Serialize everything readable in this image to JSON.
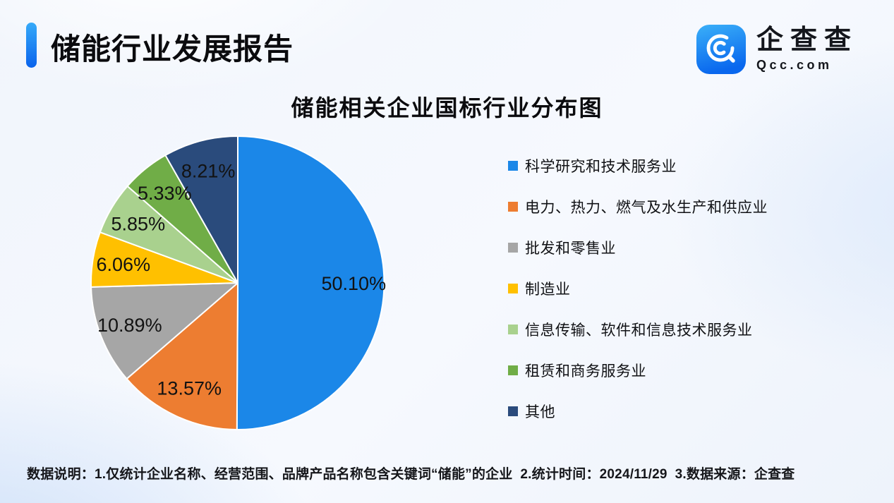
{
  "header": {
    "title": "储能行业发展报告",
    "logo": {
      "brand": "企查查",
      "domain": "Qcc.com",
      "icon": "qcc-magnifier-icon",
      "icon_gradient": [
        "#3bb0f8",
        "#0967ee"
      ]
    }
  },
  "chart_data": {
    "type": "pie",
    "title": "储能相关企业国标行业分布图",
    "categories": [
      "科学研究和技术服务业",
      "电力、热力、燃气及水生产和供应业",
      "批发和零售业",
      "制造业",
      "信息传输、软件和信息技术服务业",
      "租赁和商务服务业",
      "其他"
    ],
    "values": [
      50.1,
      13.57,
      10.89,
      6.06,
      5.85,
      5.33,
      8.21
    ],
    "labels": [
      "50.10%",
      "13.57%",
      "10.89%",
      "6.06%",
      "5.85%",
      "5.33%",
      "8.21%"
    ],
    "colors": [
      "#1b87e8",
      "#ed7d31",
      "#a6a6a6",
      "#ffc000",
      "#a9d18e",
      "#70ad47",
      "#2a4b7c"
    ],
    "start_angle_deg": 0,
    "direction": "clockwise",
    "legend_position": "right",
    "slice_border_color": "#ffffff",
    "label_color": "#121212"
  },
  "footer": {
    "note": "数据说明：1.仅统计企业名称、经营范围、品牌产品名称包含关键词“储能”的企业  2.统计时间：2024/11/29  3.数据来源：企查查"
  }
}
